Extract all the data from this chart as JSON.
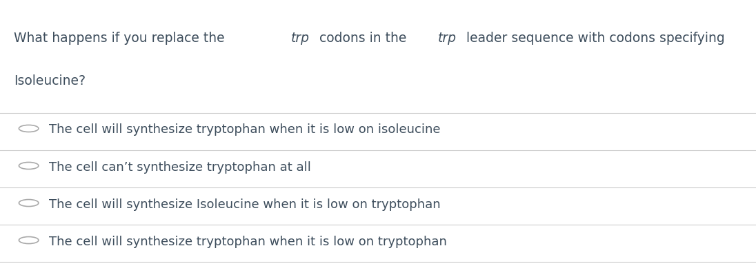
{
  "background_color": "#ffffff",
  "question_line2": "Isoleucine?",
  "options": [
    "The cell will synthesize tryptophan when it is low on isoleucine",
    "The cell can’t synthesize tryptophan at all",
    "The cell will synthesize Isoleucine when it is low on tryptophan",
    "The cell will synthesize tryptophan when it is low on tryptophan"
  ],
  "text_color": "#3d4d5c",
  "line_color": "#cccccc",
  "circle_color": "#aaaaaa",
  "question_fontsize": 13.5,
  "option_fontsize": 13.0
}
